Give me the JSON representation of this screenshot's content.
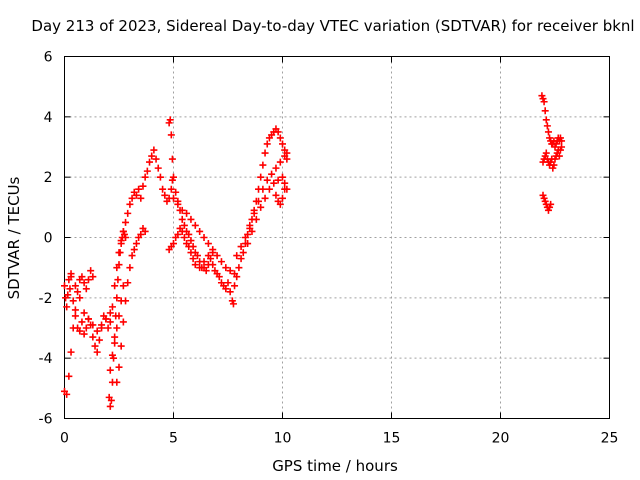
{
  "chart_data": {
    "type": "scatter",
    "title": "Day 213 of 2023, Sidereal Day-to-day VTEC variation (SDTVAR) for receiver bknl",
    "xlabel": "GPS time / hours",
    "ylabel": "SDTVAR / TECUs",
    "xlim": [
      0,
      25
    ],
    "ylim": [
      -6,
      6
    ],
    "xticks": [
      "0",
      "5",
      "10",
      "15",
      "20",
      "25"
    ],
    "yticks": [
      "-6",
      "-4",
      "-2",
      "0",
      "2",
      "4",
      "6"
    ],
    "grid": true,
    "marker": "+",
    "color": "#ff0000",
    "series": [
      {
        "name": "bknl",
        "points": [
          [
            0.0,
            -1.6
          ],
          [
            0.05,
            -2.0
          ],
          [
            0.1,
            -2.3
          ],
          [
            0.15,
            -1.9
          ],
          [
            0.2,
            -1.4
          ],
          [
            0.25,
            -1.7
          ],
          [
            0.3,
            -1.3
          ],
          [
            0.4,
            -2.1
          ],
          [
            0.5,
            -2.6
          ],
          [
            0.6,
            -3.0
          ],
          [
            0.7,
            -3.1
          ],
          [
            0.8,
            -2.8
          ],
          [
            0.9,
            -3.2
          ],
          [
            1.0,
            -3.0
          ],
          [
            1.1,
            -2.7
          ],
          [
            1.2,
            -2.9
          ],
          [
            1.3,
            -3.3
          ],
          [
            1.4,
            -3.6
          ],
          [
            1.5,
            -3.8
          ],
          [
            1.6,
            -3.4
          ],
          [
            1.7,
            -3.0
          ],
          [
            1.8,
            -2.6
          ],
          [
            1.9,
            -2.7
          ],
          [
            2.0,
            -3.0
          ],
          [
            2.1,
            -2.8
          ],
          [
            2.2,
            -2.3
          ],
          [
            2.3,
            -1.6
          ],
          [
            2.4,
            -1.0
          ],
          [
            2.5,
            -0.5
          ],
          [
            2.6,
            -0.1
          ],
          [
            2.7,
            0.2
          ],
          [
            2.8,
            0.5
          ],
          [
            2.9,
            0.8
          ],
          [
            3.0,
            1.1
          ],
          [
            3.1,
            1.3
          ],
          [
            3.2,
            1.5
          ],
          [
            3.3,
            1.4
          ],
          [
            3.4,
            1.6
          ],
          [
            3.5,
            1.3
          ],
          [
            3.6,
            1.7
          ],
          [
            3.7,
            2.0
          ],
          [
            3.8,
            2.2
          ],
          [
            3.9,
            2.5
          ],
          [
            4.0,
            2.7
          ],
          [
            4.1,
            2.9
          ],
          [
            4.2,
            2.6
          ],
          [
            4.3,
            2.3
          ],
          [
            4.4,
            2.0
          ],
          [
            4.5,
            1.6
          ],
          [
            4.6,
            1.4
          ],
          [
            4.7,
            1.2
          ],
          [
            4.8,
            1.3
          ],
          [
            4.9,
            1.6
          ],
          [
            4.95,
            1.9
          ],
          [
            0.0,
            -5.1
          ],
          [
            0.1,
            -5.2
          ],
          [
            0.2,
            -4.6
          ],
          [
            0.3,
            -3.8
          ],
          [
            0.4,
            -3.0
          ],
          [
            0.5,
            -2.4
          ],
          [
            0.6,
            -1.8
          ],
          [
            0.7,
            -1.4
          ],
          [
            0.8,
            -1.3
          ],
          [
            0.9,
            -1.5
          ],
          [
            1.0,
            -1.7
          ],
          [
            1.1,
            -1.4
          ],
          [
            1.2,
            -1.1
          ],
          [
            1.3,
            -1.3
          ],
          [
            0.3,
            -1.2
          ],
          [
            0.5,
            -1.6
          ],
          [
            0.7,
            -2.0
          ],
          [
            0.9,
            -2.5
          ],
          [
            1.1,
            -2.7
          ],
          [
            1.3,
            -2.9
          ],
          [
            1.5,
            -3.1
          ],
          [
            1.7,
            -2.9
          ],
          [
            1.9,
            -2.7
          ],
          [
            2.1,
            -2.5
          ],
          [
            2.05,
            -5.3
          ],
          [
            2.1,
            -5.6
          ],
          [
            2.15,
            -5.4
          ],
          [
            2.2,
            -4.8
          ],
          [
            2.25,
            -4.0
          ],
          [
            2.3,
            -3.3
          ],
          [
            2.35,
            -2.6
          ],
          [
            2.4,
            -2.0
          ],
          [
            2.45,
            -1.4
          ],
          [
            2.5,
            -0.9
          ],
          [
            2.55,
            -0.5
          ],
          [
            2.6,
            -0.2
          ],
          [
            2.65,
            0.0
          ],
          [
            2.7,
            0.2
          ],
          [
            2.75,
            0.1
          ],
          [
            2.8,
            0.0
          ],
          [
            2.4,
            -4.8
          ],
          [
            2.5,
            -4.3
          ],
          [
            2.6,
            -3.6
          ],
          [
            2.7,
            -2.8
          ],
          [
            2.8,
            -2.1
          ],
          [
            2.9,
            -1.5
          ],
          [
            3.0,
            -1.0
          ],
          [
            3.1,
            -0.6
          ],
          [
            3.2,
            -0.4
          ],
          [
            3.3,
            -0.2
          ],
          [
            3.4,
            0.0
          ],
          [
            3.5,
            0.1
          ],
          [
            3.6,
            0.3
          ],
          [
            3.7,
            0.2
          ],
          [
            2.1,
            -4.4
          ],
          [
            2.2,
            -3.9
          ],
          [
            2.3,
            -3.5
          ],
          [
            2.4,
            -3.0
          ],
          [
            2.5,
            -2.6
          ],
          [
            2.6,
            -2.1
          ],
          [
            2.7,
            -1.6
          ],
          [
            4.8,
            3.8
          ],
          [
            4.85,
            3.9
          ],
          [
            4.9,
            3.4
          ],
          [
            4.95,
            2.6
          ],
          [
            5.0,
            2.0
          ],
          [
            5.1,
            1.5
          ],
          [
            5.2,
            1.2
          ],
          [
            5.3,
            0.9
          ],
          [
            5.4,
            0.6
          ],
          [
            5.5,
            0.4
          ],
          [
            5.6,
            0.2
          ],
          [
            5.7,
            0.1
          ],
          [
            5.8,
            -0.1
          ],
          [
            5.9,
            -0.3
          ],
          [
            6.0,
            -0.5
          ],
          [
            6.1,
            -0.6
          ],
          [
            6.2,
            -0.8
          ],
          [
            6.3,
            -1.0
          ],
          [
            6.4,
            -1.0
          ],
          [
            6.5,
            -1.1
          ],
          [
            6.6,
            -0.9
          ],
          [
            6.7,
            -0.7
          ],
          [
            6.8,
            -0.9
          ],
          [
            6.9,
            -1.1
          ],
          [
            7.0,
            -1.2
          ],
          [
            7.1,
            -1.3
          ],
          [
            7.2,
            -1.5
          ],
          [
            7.3,
            -1.6
          ],
          [
            7.4,
            -1.7
          ],
          [
            7.5,
            -1.5
          ],
          [
            7.6,
            -1.8
          ],
          [
            7.7,
            -2.1
          ],
          [
            7.75,
            -2.2
          ],
          [
            4.8,
            -0.4
          ],
          [
            4.9,
            -0.3
          ],
          [
            5.0,
            -0.2
          ],
          [
            5.1,
            0.0
          ],
          [
            5.2,
            0.1
          ],
          [
            5.3,
            0.3
          ],
          [
            5.4,
            0.2
          ],
          [
            5.5,
            0.0
          ],
          [
            5.6,
            -0.2
          ],
          [
            5.7,
            -0.3
          ],
          [
            5.8,
            -0.5
          ],
          [
            5.9,
            -0.7
          ],
          [
            6.0,
            -0.9
          ],
          [
            6.2,
            -1.0
          ],
          [
            6.4,
            -0.8
          ],
          [
            6.6,
            -0.6
          ],
          [
            6.8,
            -0.5
          ],
          [
            7.0,
            -0.6
          ],
          [
            7.2,
            -0.8
          ],
          [
            7.4,
            -1.0
          ],
          [
            7.6,
            -1.1
          ],
          [
            7.8,
            -1.2
          ],
          [
            5.0,
            1.3
          ],
          [
            5.2,
            1.1
          ],
          [
            5.4,
            0.9
          ],
          [
            5.6,
            0.8
          ],
          [
            5.8,
            0.6
          ],
          [
            6.0,
            0.4
          ],
          [
            6.2,
            0.2
          ],
          [
            6.4,
            0.0
          ],
          [
            6.6,
            -0.2
          ],
          [
            6.8,
            -0.4
          ],
          [
            7.8,
            -1.6
          ],
          [
            7.9,
            -1.3
          ],
          [
            8.0,
            -1.0
          ],
          [
            8.1,
            -0.7
          ],
          [
            8.2,
            -0.5
          ],
          [
            8.3,
            -0.2
          ],
          [
            8.4,
            0.1
          ],
          [
            8.5,
            0.3
          ],
          [
            8.6,
            0.6
          ],
          [
            8.7,
            0.9
          ],
          [
            8.8,
            1.2
          ],
          [
            8.9,
            1.6
          ],
          [
            9.0,
            2.0
          ],
          [
            9.1,
            2.4
          ],
          [
            9.2,
            2.8
          ],
          [
            9.3,
            3.1
          ],
          [
            9.4,
            3.3
          ],
          [
            9.5,
            3.4
          ],
          [
            9.6,
            3.5
          ],
          [
            9.7,
            3.6
          ],
          [
            9.8,
            3.5
          ],
          [
            9.9,
            3.3
          ],
          [
            10.0,
            3.1
          ],
          [
            10.1,
            2.9
          ],
          [
            10.2,
            2.6
          ],
          [
            7.9,
            -0.6
          ],
          [
            8.1,
            -0.3
          ],
          [
            8.3,
            0.0
          ],
          [
            8.5,
            0.4
          ],
          [
            8.7,
            0.8
          ],
          [
            8.9,
            1.2
          ],
          [
            9.1,
            1.6
          ],
          [
            9.3,
            1.9
          ],
          [
            9.5,
            2.1
          ],
          [
            9.7,
            2.3
          ],
          [
            9.9,
            2.5
          ],
          [
            10.1,
            2.7
          ],
          [
            10.2,
            2.8
          ],
          [
            8.4,
            -0.2
          ],
          [
            8.6,
            0.2
          ],
          [
            8.8,
            0.6
          ],
          [
            9.0,
            1.0
          ],
          [
            9.2,
            1.3
          ],
          [
            9.4,
            1.6
          ],
          [
            9.6,
            1.8
          ],
          [
            9.8,
            1.9
          ],
          [
            10.0,
            2.0
          ],
          [
            10.1,
            1.8
          ],
          [
            10.2,
            1.6
          ],
          [
            9.7,
            1.4
          ],
          [
            9.8,
            1.2
          ],
          [
            9.9,
            1.1
          ],
          [
            10.0,
            1.3
          ],
          [
            10.1,
            1.6
          ],
          [
            21.9,
            4.7
          ],
          [
            21.95,
            4.6
          ],
          [
            22.0,
            4.5
          ],
          [
            22.05,
            4.2
          ],
          [
            22.1,
            3.9
          ],
          [
            22.15,
            3.7
          ],
          [
            22.2,
            3.5
          ],
          [
            22.25,
            3.3
          ],
          [
            22.3,
            3.2
          ],
          [
            22.35,
            3.1
          ],
          [
            22.4,
            3.1
          ],
          [
            22.45,
            3.2
          ],
          [
            22.5,
            3.0
          ],
          [
            22.55,
            3.1
          ],
          [
            22.6,
            3.2
          ],
          [
            22.65,
            3.3
          ],
          [
            22.7,
            3.2
          ],
          [
            22.75,
            3.3
          ],
          [
            22.8,
            3.2
          ],
          [
            21.95,
            2.5
          ],
          [
            22.0,
            2.6
          ],
          [
            22.05,
            2.7
          ],
          [
            22.1,
            2.8
          ],
          [
            22.15,
            2.6
          ],
          [
            22.2,
            2.5
          ],
          [
            22.25,
            2.4
          ],
          [
            22.3,
            2.5
          ],
          [
            22.35,
            2.6
          ],
          [
            22.4,
            2.3
          ],
          [
            22.45,
            2.4
          ],
          [
            22.5,
            2.6
          ],
          [
            22.55,
            2.7
          ],
          [
            22.6,
            2.8
          ],
          [
            22.65,
            2.9
          ],
          [
            22.7,
            2.7
          ],
          [
            22.75,
            2.9
          ],
          [
            22.8,
            3.0
          ],
          [
            21.95,
            1.4
          ],
          [
            22.0,
            1.3
          ],
          [
            22.05,
            1.2
          ],
          [
            22.1,
            1.1
          ],
          [
            22.15,
            1.0
          ],
          [
            22.2,
            0.9
          ],
          [
            22.25,
            1.0
          ],
          [
            22.3,
            1.1
          ]
        ]
      }
    ]
  }
}
